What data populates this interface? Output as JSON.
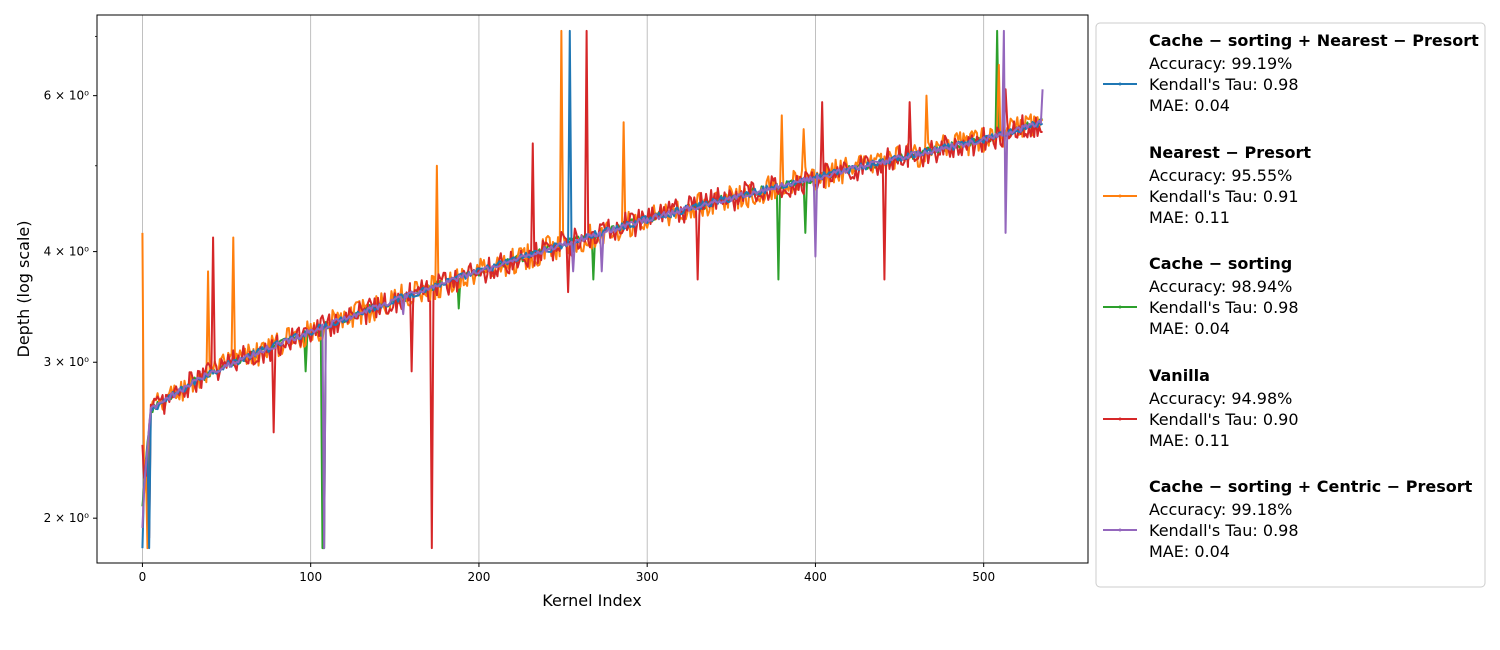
{
  "chart_data": {
    "type": "line",
    "xlabel": "Kernel Index",
    "ylabel": "Depth (log scale)",
    "y_scale": "log",
    "xlim": [
      -27,
      562
    ],
    "ylim": [
      1.78,
      7.4
    ],
    "x_ticks": [
      0,
      100,
      200,
      300,
      400,
      500
    ],
    "x_tick_labels": [
      "0",
      "100",
      "200",
      "300",
      "400",
      "500"
    ],
    "y_ticks": [
      2,
      3,
      4,
      6
    ],
    "y_tick_labels": [
      "2 × 10⁰",
      "3 × 10⁰",
      "4 × 10⁰",
      "6 × 10⁰"
    ],
    "y_minor_ticks": [
      5,
      7
    ],
    "grid": "vertical lines at x ticks",
    "legend_position": "outside-right",
    "series": [
      {
        "name": "Cache − sorting + Nearest − Presort",
        "color": "#1f77b4",
        "stats": [
          "Accuracy: 99.19%",
          "Kendall's Tau: 0.98",
          "MAE: 0.04"
        ],
        "spikes": [
          [
            0,
            1.85
          ],
          [
            4,
            1.85
          ],
          [
            254,
            7.1
          ],
          [
            256,
            4.0
          ]
        ],
        "noise": 0.01
      },
      {
        "name": "Nearest − Presort",
        "color": "#ff7f0e",
        "stats": [
          "Accuracy: 95.55%",
          "Kendall's Tau: 0.91",
          "MAE: 0.11"
        ],
        "spikes": [
          [
            0,
            4.2
          ],
          [
            3,
            1.85
          ],
          [
            39,
            3.8
          ],
          [
            54,
            4.15
          ],
          [
            175,
            5.0
          ],
          [
            249,
            7.1
          ],
          [
            286,
            5.6
          ],
          [
            380,
            5.7
          ],
          [
            393,
            5.5
          ],
          [
            466,
            6.0
          ],
          [
            509,
            6.5
          ]
        ],
        "noise": 0.035
      },
      {
        "name": "Cache − sorting",
        "color": "#2ca02c",
        "stats": [
          "Accuracy: 98.94%",
          "Kendall's Tau: 0.98",
          "MAE: 0.04"
        ],
        "spikes": [
          [
            97,
            2.93
          ],
          [
            107,
            1.85
          ],
          [
            108,
            1.85
          ],
          [
            188,
            3.45
          ],
          [
            268,
            3.72
          ],
          [
            378,
            3.72
          ],
          [
            394,
            4.2
          ],
          [
            508,
            7.1
          ]
        ],
        "noise": 0.012
      },
      {
        "name": "Vanilla",
        "color": "#d62728",
        "stats": [
          "Accuracy: 94.98%",
          "Kendall's Tau: 0.90",
          "MAE: 0.11"
        ],
        "spikes": [
          [
            0,
            2.42
          ],
          [
            4,
            1.9
          ],
          [
            42,
            4.15
          ],
          [
            78,
            2.5
          ],
          [
            160,
            2.93
          ],
          [
            172,
            1.85
          ],
          [
            232,
            5.3
          ],
          [
            253,
            3.6
          ],
          [
            264,
            7.1
          ],
          [
            330,
            3.72
          ],
          [
            404,
            5.9
          ],
          [
            441,
            3.72
          ],
          [
            456,
            5.9
          ],
          [
            513,
            6.1
          ]
        ],
        "noise": 0.035
      },
      {
        "name": "Cache − sorting + Centric − Presort",
        "color": "#9467bd",
        "stats": [
          "Accuracy: 99.18%",
          "Kendall's Tau: 0.98",
          "MAE: 0.04"
        ],
        "spikes": [
          [
            0,
            1.95
          ],
          [
            108,
            1.85
          ],
          [
            155,
            3.4
          ],
          [
            256,
            3.8
          ],
          [
            273,
            3.8
          ],
          [
            400,
            3.95
          ],
          [
            512,
            7.1
          ],
          [
            513,
            4.2
          ],
          [
            535,
            6.1
          ]
        ],
        "noise": 0.008
      }
    ]
  }
}
